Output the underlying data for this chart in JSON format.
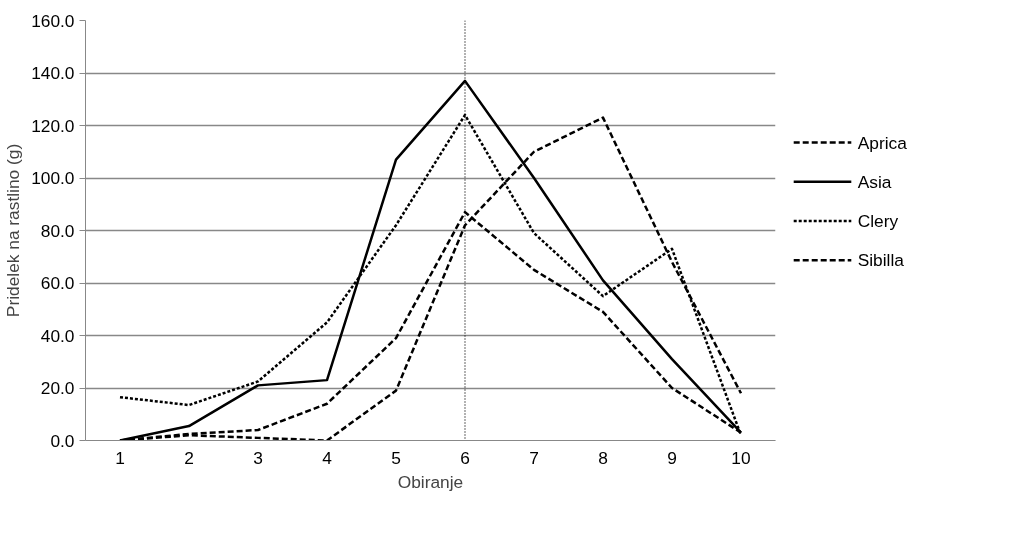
{
  "chart_data": {
    "type": "line",
    "xlabel": "Obiranje",
    "ylabel": "Pridelek na rastlino (g)",
    "categories": [
      "1",
      "2",
      "3",
      "4",
      "5",
      "6",
      "7",
      "8",
      "9",
      "10"
    ],
    "series": [
      {
        "name": "Aprica",
        "color": "#000000",
        "line_style": "dashed",
        "values": [
          0,
          2.5,
          4,
          14,
          39,
          87,
          65,
          49,
          20,
          3
        ]
      },
      {
        "name": "Asia",
        "color": "#000000",
        "line_style": "solid",
        "values": [
          0,
          5.5,
          21,
          23,
          107,
          137,
          100,
          61,
          31,
          3
        ]
      },
      {
        "name": "Clery",
        "color": "#000000",
        "line_style": "dotted",
        "values": [
          16.5,
          13.5,
          22.5,
          45,
          82,
          124,
          79,
          55,
          73,
          2
        ]
      },
      {
        "name": "Sibilla",
        "color": "#000000",
        "line_style": "dashed",
        "values": [
          0,
          2,
          1,
          0,
          19,
          82,
          110,
          123,
          68,
          18
        ]
      }
    ],
    "ylim": [
      0,
      160
    ],
    "yticks": [
      {
        "value": 0,
        "label": "0.0"
      },
      {
        "value": 20,
        "label": "20.0"
      },
      {
        "value": 40,
        "label": "40.0"
      },
      {
        "value": 60,
        "label": "60.0"
      },
      {
        "value": 80,
        "label": "80.0"
      },
      {
        "value": 100,
        "label": "100.0"
      },
      {
        "value": 120,
        "label": "120.0"
      },
      {
        "value": 140,
        "label": "140.0"
      },
      {
        "value": 160,
        "label": "160.0"
      }
    ],
    "ref_lines": [
      {
        "axis": "x",
        "value": "6",
        "color": "#000000",
        "line_style": "dotted"
      }
    ],
    "grid": "y",
    "legend": "right",
    "marker": "none"
  }
}
